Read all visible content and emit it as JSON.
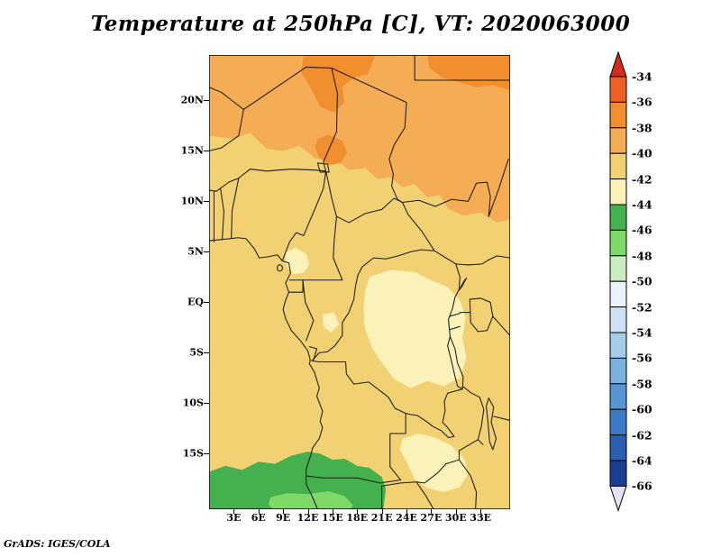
{
  "title": "Temperature at 250hPa [C], VT: 2020063000",
  "credit": "GrADS: IGES/COLA",
  "chart_data": {
    "type": "heatmap",
    "title": "Temperature at 250hPa [C], VT: 2020063000",
    "variable": "Temperature",
    "level": "250hPa",
    "units": "C",
    "valid_time": "2020063000",
    "projection": "latlon",
    "lon_range_deg_e": [
      0,
      36.6
    ],
    "lat_range_deg": [
      -20.5,
      24.5
    ],
    "x_axis": {
      "tick_labels": [
        "3E",
        "6E",
        "9E",
        "12E",
        "15E",
        "18E",
        "21E",
        "24E",
        "27E",
        "30E",
        "33E"
      ],
      "tick_lons": [
        3,
        6,
        9,
        12,
        15,
        18,
        21,
        24,
        27,
        30,
        33
      ]
    },
    "y_axis": {
      "tick_labels": [
        "20N",
        "15N",
        "10N",
        "5N",
        "EQ",
        "5S",
        "10S",
        "15S"
      ],
      "tick_lats": [
        20,
        15,
        10,
        5,
        0,
        -5,
        -10,
        -15
      ]
    },
    "colorbar": {
      "boundary_labels": [
        "-34",
        "-36",
        "-38",
        "-40",
        "-42",
        "-44",
        "-46",
        "-48",
        "-50",
        "-52",
        "-54",
        "-56",
        "-58",
        "-60",
        "-62",
        "-64",
        "-66"
      ],
      "boundary_values_c": [
        -34,
        -36,
        -38,
        -40,
        -42,
        -44,
        -46,
        -48,
        -50,
        -52,
        -54,
        -56,
        -58,
        -60,
        -62,
        -64,
        -66
      ],
      "above_max_color": "#d62a1b",
      "below_min_color": "#e6e3f4",
      "segment_colors": [
        "#ee5f23",
        "#f18f2e",
        "#f5ad55",
        "#f1d172",
        "#faf2b8",
        "#44b04e",
        "#7fd968",
        "#c9ecc0",
        "#e9f5fb",
        "#cbe3f5",
        "#a5cdea",
        "#7ab1df",
        "#5795d3",
        "#3b7ac5",
        "#2a5eb1",
        "#1c3e90"
      ]
    },
    "shading_summary": {
      "note": "Filled 2C bands over central Africa; dominant band -42 to -40 C",
      "regions": [
        {
          "band_c": "-38 to -36",
          "color": "#f18f2e",
          "where": "Sahara along top edge and northeast corner"
        },
        {
          "band_c": "-40 to -38",
          "color": "#f5ad55",
          "where": "broad band north of about 12N and down the east side"
        },
        {
          "band_c": "-42 to -40",
          "color": "#f1d172",
          "where": "most of the domain"
        },
        {
          "band_c": "-44 to -42",
          "color": "#faf2b8",
          "where": "central and eastern DRC, Gulf of Guinea coast patch, southeast patch"
        },
        {
          "band_c": "-46 to -44",
          "color": "#44b04e",
          "where": "southern edge roughly 15S to 20S"
        },
        {
          "band_c": "-48 to -46",
          "color": "#7fd968",
          "where": "narrow strip on the far southern edge"
        }
      ]
    }
  }
}
